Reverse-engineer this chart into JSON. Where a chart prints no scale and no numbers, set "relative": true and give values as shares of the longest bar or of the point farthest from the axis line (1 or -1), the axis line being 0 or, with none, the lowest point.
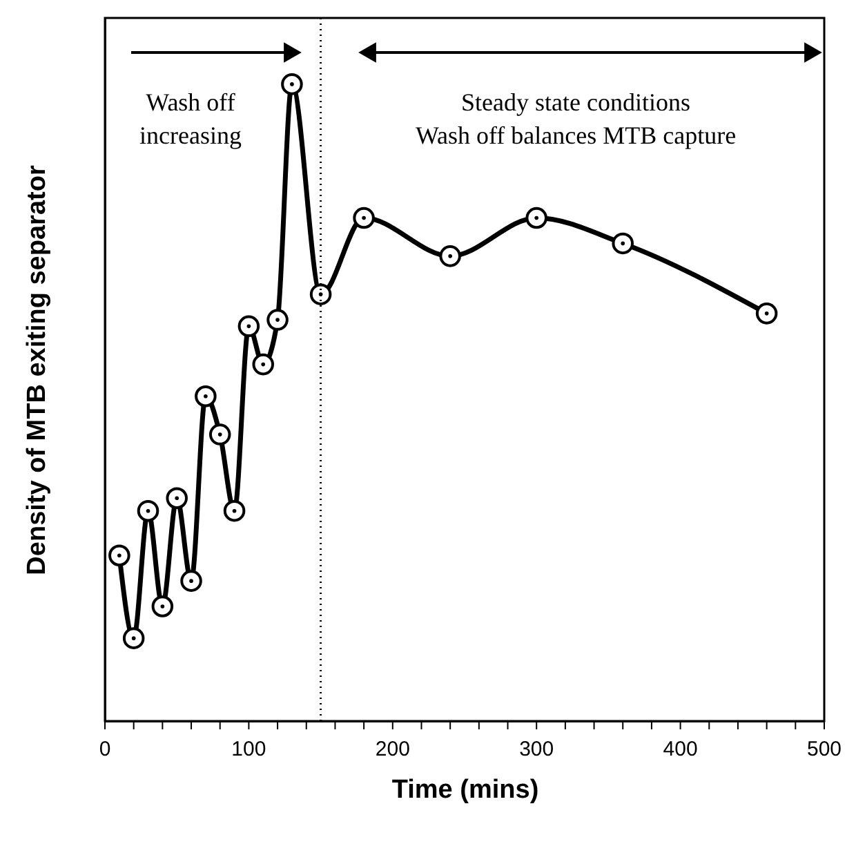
{
  "chart_data": {
    "type": "line",
    "xlabel": "Time (mins)",
    "ylabel": "Density of MTB exiting separator",
    "relative": true,
    "x": [
      10,
      20,
      30,
      40,
      50,
      60,
      70,
      80,
      90,
      100,
      110,
      120,
      130,
      150,
      180,
      240,
      300,
      360,
      460
    ],
    "series": [
      {
        "color": "#000000",
        "values": [
          0.26,
          0.13,
          0.33,
          0.18,
          0.35,
          0.22,
          0.51,
          0.45,
          0.33,
          0.62,
          0.56,
          0.63,
          1.0,
          0.67,
          0.79,
          0.73,
          0.79,
          0.75,
          0.64
        ]
      }
    ],
    "xlim": [
      0,
      500
    ],
    "xticks": [
      0,
      {
        "value": 20,
        "label": null
      },
      {
        "value": 40,
        "label": null
      },
      {
        "value": 60,
        "label": null
      },
      {
        "value": 80,
        "label": null
      },
      100,
      {
        "value": 120,
        "label": null
      },
      {
        "value": 140,
        "label": null
      },
      {
        "value": 160,
        "label": null
      },
      {
        "value": 180,
        "label": null
      },
      200,
      {
        "value": 220,
        "label": null
      },
      {
        "value": 240,
        "label": null
      },
      {
        "value": 260,
        "label": null
      },
      {
        "value": 280,
        "label": null
      },
      300,
      {
        "value": 320,
        "label": null
      },
      {
        "value": 340,
        "label": null
      },
      {
        "value": 360,
        "label": null
      },
      {
        "value": 380,
        "label": null
      },
      400,
      {
        "value": 420,
        "label": null
      },
      {
        "value": 440,
        "label": null
      },
      {
        "value": 460,
        "label": null
      },
      {
        "value": 480,
        "label": null
      },
      500
    ],
    "ref_lines": [
      {
        "axis": "x",
        "value": 150,
        "line_style": "dotted",
        "color": "#000000"
      }
    ],
    "annotations": [
      "Wash off\nincreasing",
      "Steady state conditions\nWash off balances MTB capture"
    ],
    "marker": "circle",
    "line_style": "solid",
    "grid": false
  }
}
